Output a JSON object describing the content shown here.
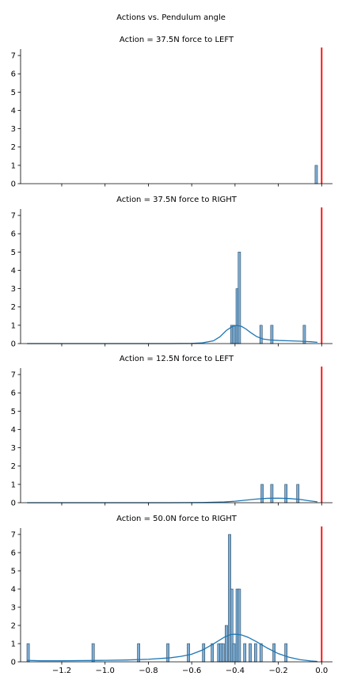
{
  "chart_data": {
    "suptitle": "Actions vs. Pendulum angle",
    "type": "histogram",
    "shared_x": true,
    "xlim": [
      -1.39,
      0.05
    ],
    "x_ticks": [
      -1.4,
      -1.2,
      -1.0,
      -0.8,
      -0.6,
      -0.4,
      -0.2,
      0.0
    ],
    "x_tick_labels": [
      "−1.4",
      "−1.2",
      "−1.0",
      "−0.8",
      "−0.6",
      "−0.4",
      "−0.2",
      "0.0"
    ],
    "ylim": [
      0,
      7.35
    ],
    "y_ticks": [
      0,
      1,
      2,
      3,
      4,
      5,
      6,
      7
    ],
    "y_tick_labels": [
      "0",
      "1",
      "2",
      "3",
      "4",
      "5",
      "6",
      "7"
    ],
    "reference_line": {
      "x": 0.0,
      "color": "#ff0000"
    },
    "bar_fill": "#7eadd3",
    "bar_edge": "#2a4a63",
    "kde_color": "#1f77b4",
    "bin_width": 0.0115,
    "grid": false,
    "legend": "none",
    "panels": [
      {
        "title": "Action = 37.5N force to LEFT",
        "bars": [
          {
            "x": -0.025,
            "count": 1
          }
        ],
        "kde": {
          "x": [],
          "y": []
        }
      },
      {
        "title": "Action = 37.5N force to RIGHT",
        "bars": [
          {
            "x": -0.415,
            "count": 1
          },
          {
            "x": -0.405,
            "count": 1
          },
          {
            "x": -0.39,
            "count": 3
          },
          {
            "x": -0.38,
            "count": 5
          },
          {
            "x": -0.28,
            "count": 1
          },
          {
            "x": -0.23,
            "count": 1
          },
          {
            "x": -0.08,
            "count": 1
          }
        ],
        "kde": {
          "x": [
            -1.36,
            -1.2,
            -1.0,
            -0.8,
            -0.7,
            -0.6,
            -0.55,
            -0.5,
            -0.47,
            -0.44,
            -0.41,
            -0.39,
            -0.37,
            -0.35,
            -0.33,
            -0.3,
            -0.27,
            -0.24,
            -0.2,
            -0.15,
            -0.1,
            -0.05,
            -0.02
          ],
          "y": [
            0.0,
            0.0,
            0.0,
            0.0,
            0.0,
            0.01,
            0.04,
            0.15,
            0.37,
            0.72,
            0.95,
            0.99,
            0.94,
            0.8,
            0.62,
            0.38,
            0.25,
            0.2,
            0.17,
            0.15,
            0.13,
            0.1,
            0.07
          ]
        }
      },
      {
        "title": "Action = 12.5N force to LEFT",
        "bars": [
          {
            "x": -0.275,
            "count": 1
          },
          {
            "x": -0.23,
            "count": 1
          },
          {
            "x": -0.165,
            "count": 1
          },
          {
            "x": -0.11,
            "count": 1
          }
        ],
        "kde": {
          "x": [
            -1.36,
            -1.0,
            -0.7,
            -0.55,
            -0.45,
            -0.4,
            -0.35,
            -0.3,
            -0.25,
            -0.2,
            -0.15,
            -0.1,
            -0.06,
            -0.02
          ],
          "y": [
            0.0,
            0.0,
            0.0,
            0.01,
            0.04,
            0.08,
            0.14,
            0.2,
            0.24,
            0.25,
            0.23,
            0.18,
            0.11,
            0.05
          ]
        }
      },
      {
        "title": "Action = 50.0N force to RIGHT",
        "bars": [
          {
            "x": -1.355,
            "count": 1
          },
          {
            "x": -1.055,
            "count": 1
          },
          {
            "x": -0.845,
            "count": 1
          },
          {
            "x": -0.71,
            "count": 1
          },
          {
            "x": -0.615,
            "count": 1
          },
          {
            "x": -0.545,
            "count": 1
          },
          {
            "x": -0.505,
            "count": 1
          },
          {
            "x": -0.475,
            "count": 1
          },
          {
            "x": -0.465,
            "count": 1
          },
          {
            "x": -0.455,
            "count": 1
          },
          {
            "x": -0.44,
            "count": 2
          },
          {
            "x": -0.425,
            "count": 7
          },
          {
            "x": -0.415,
            "count": 4
          },
          {
            "x": -0.405,
            "count": 1
          },
          {
            "x": -0.39,
            "count": 4
          },
          {
            "x": -0.38,
            "count": 4
          },
          {
            "x": -0.355,
            "count": 1
          },
          {
            "x": -0.33,
            "count": 1
          },
          {
            "x": -0.305,
            "count": 1
          },
          {
            "x": -0.28,
            "count": 1
          },
          {
            "x": -0.22,
            "count": 1
          },
          {
            "x": -0.165,
            "count": 1
          }
        ],
        "kde": {
          "x": [
            -1.36,
            -1.3,
            -1.2,
            -1.1,
            -1.0,
            -0.9,
            -0.8,
            -0.7,
            -0.65,
            -0.6,
            -0.55,
            -0.5,
            -0.45,
            -0.42,
            -0.4,
            -0.37,
            -0.34,
            -0.3,
            -0.25,
            -0.2,
            -0.15,
            -0.1,
            -0.05,
            -0.02
          ],
          "y": [
            0.08,
            0.06,
            0.06,
            0.07,
            0.08,
            0.1,
            0.14,
            0.22,
            0.3,
            0.42,
            0.65,
            0.98,
            1.35,
            1.5,
            1.52,
            1.48,
            1.35,
            1.1,
            0.75,
            0.45,
            0.25,
            0.12,
            0.05,
            0.02
          ]
        }
      }
    ]
  }
}
